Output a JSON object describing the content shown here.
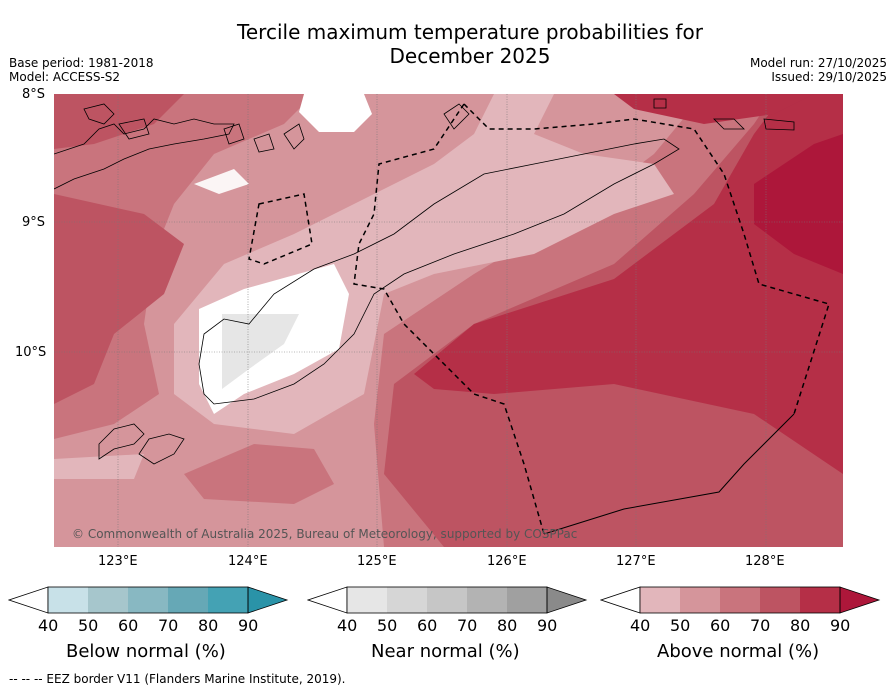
{
  "title_line1": "Tercile maximum temperature probabilities for",
  "title_line2": "December 2025",
  "meta_left": {
    "base_period": "Base period: 1981-2018",
    "model": "Model: ACCESS-S2"
  },
  "meta_right": {
    "model_run": "Model run: 27/10/2025",
    "issued": "Issued: 29/10/2025"
  },
  "y_ticks": [
    "8°S",
    "9°S",
    "10°S"
  ],
  "x_ticks": [
    "123°E",
    "124°E",
    "125°E",
    "126°E",
    "127°E",
    "128°E"
  ],
  "copyright": "© Commonwealth of Australia 2025, Bureau of Meteorology, supported by COSPPac",
  "footnote": "--  --  -- EEZ border V11 (Flanders Marine Institute, 2019).",
  "colorbars": [
    {
      "label": "Below normal (%)",
      "ticks": [
        "40",
        "50",
        "60",
        "70",
        "80",
        "90"
      ],
      "colors": [
        "#c8e1e8",
        "#a6c6cc",
        "#88b8c2",
        "#66a8b6",
        "#44a2b4",
        "#2a93a8"
      ]
    },
    {
      "label": "Near normal (%)",
      "ticks": [
        "40",
        "50",
        "60",
        "70",
        "80",
        "90"
      ],
      "colors": [
        "#e6e6e6",
        "#d6d6d6",
        "#c6c6c6",
        "#b3b3b3",
        "#a0a0a0",
        "#8a8a8a"
      ]
    },
    {
      "label": "Above normal (%)",
      "ticks": [
        "40",
        "50",
        "60",
        "70",
        "80",
        "90"
      ],
      "colors": [
        "#e2b6bb",
        "#d5959b",
        "#c9747d",
        "#bd5462",
        "#b52f47",
        "#ad173a"
      ]
    }
  ],
  "colors": {
    "above_40": "#e2b6bb",
    "above_50": "#d5959b",
    "above_60": "#c9747d",
    "above_70": "#bd5462",
    "above_80": "#b52f47",
    "above_90": "#ad173a",
    "near_40": "#e6e6e6"
  }
}
